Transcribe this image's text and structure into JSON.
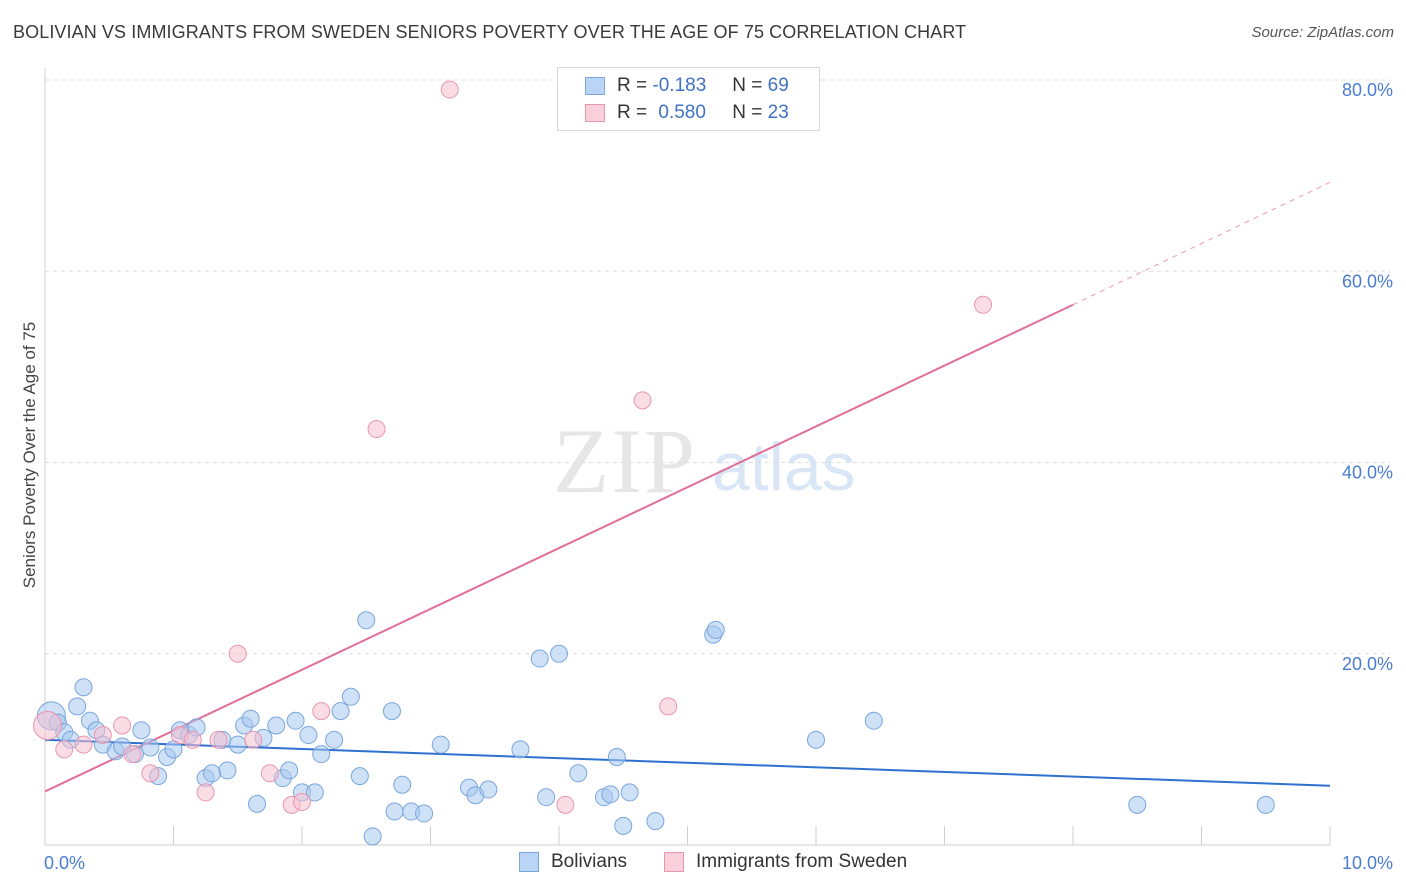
{
  "title": "BOLIVIAN VS IMMIGRANTS FROM SWEDEN SENIORS POVERTY OVER THE AGE OF 75 CORRELATION CHART",
  "source": "Source: ZipAtlas.com",
  "watermark": {
    "zip": "ZIP",
    "atlas": "atlas"
  },
  "colors": {
    "blue_fill": "#a8c8f0",
    "blue_edge": "#7aa6dc",
    "blue_line": "#2f6fcf",
    "pink_fill": "#f6bfd0",
    "pink_edge": "#e896b0",
    "pink_line": "#e0709a",
    "tick_text": "#4a7ccf",
    "grid": "#dddddd"
  },
  "legend": {
    "rows": [
      {
        "r_label": "R =",
        "r_value": "-0.183",
        "n_label": "N =",
        "n_value": "69"
      },
      {
        "r_label": "R =",
        "r_value": "0.580",
        "n_label": "N =",
        "n_value": "23"
      }
    ]
  },
  "bottom_legend": {
    "series1": "Bolivians",
    "series2": "Immigrants from Sweden"
  },
  "chart_data": {
    "type": "scatter",
    "title": "BOLIVIAN VS IMMIGRANTS FROM SWEDEN SENIORS POVERTY OVER THE AGE OF 75 CORRELATION CHART",
    "xlabel": "",
    "ylabel": "Seniors Poverty Over the Age of 75",
    "xlim": [
      0,
      10
    ],
    "ylim": [
      0,
      80
    ],
    "x_tick_labels": [
      "0.0%",
      "10.0%"
    ],
    "y_ticks": [
      20,
      40,
      60,
      80
    ],
    "y_tick_labels": [
      "20.0%",
      "40.0%",
      "60.0%",
      "80.0%"
    ],
    "grid": true,
    "legend_position": "top-center",
    "series": [
      {
        "name": "Bolivians",
        "r": -0.183,
        "n": 69,
        "trend": {
          "x": [
            0.0,
            10.0
          ],
          "y": [
            11.0,
            6.2
          ]
        },
        "points": [
          [
            0.05,
            13.5
          ],
          [
            0.1,
            12.8
          ],
          [
            0.15,
            11.8
          ],
          [
            0.2,
            11.0
          ],
          [
            0.25,
            14.5
          ],
          [
            0.3,
            16.5
          ],
          [
            0.35,
            13.0
          ],
          [
            0.4,
            12.0
          ],
          [
            0.45,
            10.5
          ],
          [
            0.55,
            9.8
          ],
          [
            0.6,
            10.3
          ],
          [
            0.7,
            9.5
          ],
          [
            0.75,
            12.0
          ],
          [
            0.82,
            10.2
          ],
          [
            0.88,
            7.2
          ],
          [
            0.95,
            9.2
          ],
          [
            1.0,
            10.0
          ],
          [
            1.05,
            12.0
          ],
          [
            1.12,
            11.5
          ],
          [
            1.18,
            12.3
          ],
          [
            1.25,
            7.0
          ],
          [
            1.3,
            7.5
          ],
          [
            1.38,
            11.0
          ],
          [
            1.42,
            7.8
          ],
          [
            1.5,
            10.5
          ],
          [
            1.55,
            12.5
          ],
          [
            1.6,
            13.2
          ],
          [
            1.65,
            4.3
          ],
          [
            1.7,
            11.2
          ],
          [
            1.8,
            12.5
          ],
          [
            1.85,
            7.0
          ],
          [
            1.9,
            7.8
          ],
          [
            1.95,
            13.0
          ],
          [
            2.0,
            5.5
          ],
          [
            2.05,
            11.5
          ],
          [
            2.1,
            5.5
          ],
          [
            2.15,
            9.5
          ],
          [
            2.25,
            11.0
          ],
          [
            2.3,
            14.0
          ],
          [
            2.38,
            15.5
          ],
          [
            2.45,
            7.2
          ],
          [
            2.5,
            23.5
          ],
          [
            2.55,
            0.9
          ],
          [
            2.7,
            14.0
          ],
          [
            2.72,
            3.5
          ],
          [
            2.78,
            6.3
          ],
          [
            2.85,
            3.5
          ],
          [
            2.95,
            3.3
          ],
          [
            3.08,
            10.5
          ],
          [
            3.3,
            6.0
          ],
          [
            3.35,
            5.2
          ],
          [
            3.45,
            5.8
          ],
          [
            3.7,
            10.0
          ],
          [
            3.85,
            19.5
          ],
          [
            3.9,
            5.0
          ],
          [
            4.0,
            20.0
          ],
          [
            4.15,
            7.5
          ],
          [
            4.35,
            5.0
          ],
          [
            4.4,
            5.3
          ],
          [
            4.45,
            9.2
          ],
          [
            4.5,
            2.0
          ],
          [
            4.55,
            5.5
          ],
          [
            4.75,
            2.5
          ],
          [
            5.2,
            22.0
          ],
          [
            5.22,
            22.5
          ],
          [
            6.0,
            11.0
          ],
          [
            6.45,
            13.0
          ],
          [
            8.5,
            4.2
          ],
          [
            9.5,
            4.2
          ]
        ]
      },
      {
        "name": "Immigrants from Sweden",
        "r": 0.58,
        "n": 23,
        "trend": {
          "x": [
            0.0,
            8.0
          ],
          "y": [
            5.6,
            56.5
          ],
          "dashed_to": [
            10.0,
            69.3
          ]
        },
        "points": [
          [
            0.02,
            12.5
          ],
          [
            0.15,
            10.0
          ],
          [
            0.3,
            10.5
          ],
          [
            0.45,
            11.5
          ],
          [
            0.6,
            12.5
          ],
          [
            0.68,
            9.5
          ],
          [
            0.82,
            7.5
          ],
          [
            1.05,
            11.5
          ],
          [
            1.15,
            11.0
          ],
          [
            1.25,
            5.5
          ],
          [
            1.35,
            11.0
          ],
          [
            1.5,
            20.0
          ],
          [
            1.62,
            11.0
          ],
          [
            1.75,
            7.5
          ],
          [
            1.92,
            4.2
          ],
          [
            2.0,
            4.5
          ],
          [
            2.15,
            14.0
          ],
          [
            2.58,
            43.5
          ],
          [
            3.15,
            79.0
          ],
          [
            4.05,
            4.2
          ],
          [
            4.65,
            46.5
          ],
          [
            4.85,
            14.5
          ],
          [
            7.3,
            56.5
          ]
        ]
      }
    ]
  }
}
